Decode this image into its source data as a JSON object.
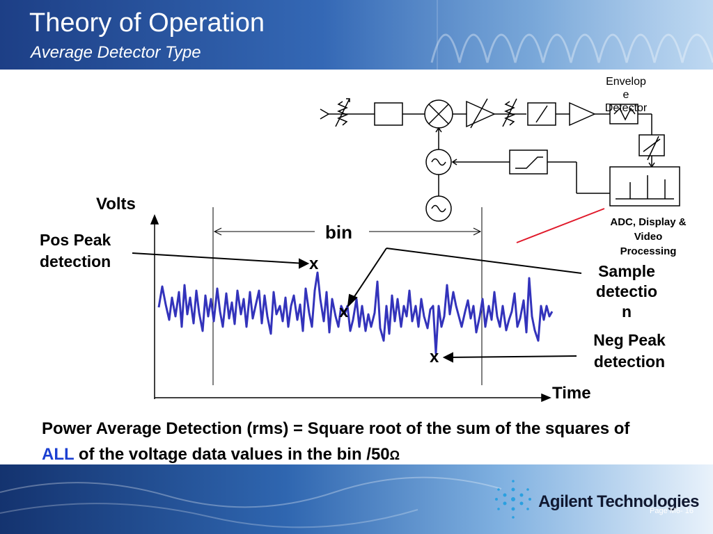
{
  "header": {
    "title": "Theory of Operation",
    "subtitle": "Average Detector Type"
  },
  "block_diagram": {
    "envelope_detector_line1": "Envelop",
    "envelope_detector_line2": "e",
    "envelope_detector_line3": "Detector",
    "adc_line1": "ADC, Display &",
    "adc_line2": "Video",
    "adc_line3": "Processing"
  },
  "plot": {
    "y_label": "Volts",
    "x_label": "Time",
    "bin_label": "bin",
    "marker": "x",
    "pos_peak_line1": "Pos Peak",
    "pos_peak_line2": "detection",
    "sample_line1": "Sample",
    "sample_line2": "detectio",
    "sample_line3": "n",
    "neg_peak_line1": "Neg Peak",
    "neg_peak_line2": "detection",
    "signal_color": "#3333bb",
    "highlight_color": "#e0192a"
  },
  "formula": {
    "part1": "Power Average Detection (rms) = Square root of the sum of the squares of ",
    "highlight": "ALL",
    "part2": " of the voltage data values in the bin /50",
    "ohm": "Ω"
  },
  "footer": {
    "logo": "Agilent Technologies",
    "page": "Page M6- 16"
  }
}
